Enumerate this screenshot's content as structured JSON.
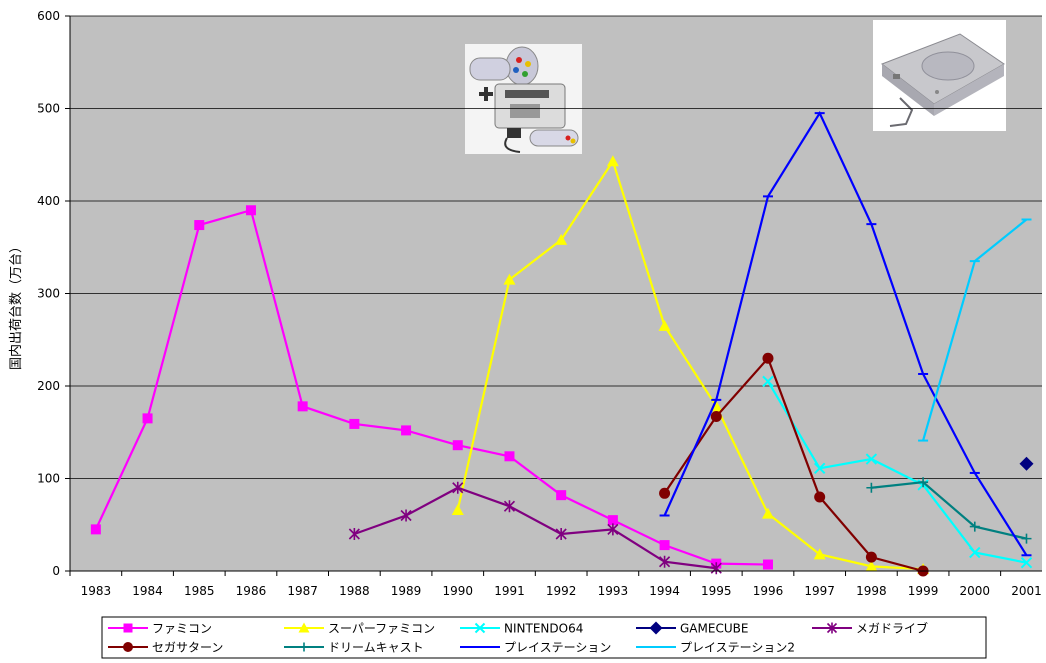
{
  "chart_data": {
    "type": "line",
    "title": "",
    "xlabel": "",
    "ylabel": "国内出荷台数（万台）",
    "ylim": [
      0,
      600
    ],
    "yticks": [
      0,
      100,
      200,
      300,
      400,
      500,
      600
    ],
    "categories": [
      "1983",
      "1984",
      "1985",
      "1986",
      "1987",
      "1988",
      "1989",
      "1990",
      "1991",
      "1992",
      "1993",
      "1994",
      "1995",
      "1996",
      "1997",
      "1998",
      "1999",
      "2000",
      "2001"
    ],
    "grid": "horizontal",
    "background_color": "#c0c0c0",
    "legend_position": "bottom",
    "series": [
      {
        "name": "ファミコン",
        "color": "#ff00ff",
        "marker": "square",
        "values": [
          45,
          165,
          374,
          390,
          178,
          159,
          152,
          136,
          124,
          82,
          55,
          28,
          8,
          7,
          null,
          null,
          null,
          null,
          null
        ]
      },
      {
        "name": "スーパーファミコン",
        "color": "#ffff00",
        "marker": "triangle",
        "values": [
          null,
          null,
          null,
          null,
          null,
          null,
          null,
          66,
          315,
          358,
          443,
          265,
          178,
          62,
          18,
          5,
          2,
          null,
          null
        ]
      },
      {
        "name": "NINTENDO64",
        "color": "#00ffff",
        "marker": "x",
        "values": [
          null,
          null,
          null,
          null,
          null,
          null,
          null,
          null,
          null,
          null,
          null,
          null,
          null,
          205,
          111,
          121,
          93,
          20,
          9
        ]
      },
      {
        "name": "GAMECUBE",
        "color": "#000080",
        "marker": "diamond",
        "values": [
          null,
          null,
          null,
          null,
          null,
          null,
          null,
          null,
          null,
          null,
          null,
          null,
          null,
          null,
          null,
          null,
          null,
          null,
          116
        ]
      },
      {
        "name": "メガドライブ",
        "color": "#800080",
        "marker": "asterisk",
        "values": [
          null,
          null,
          null,
          null,
          null,
          40,
          60,
          90,
          70,
          40,
          45,
          10,
          3,
          null,
          null,
          null,
          null,
          null,
          null
        ]
      },
      {
        "name": "セガサターン",
        "color": "#800000",
        "marker": "circle",
        "values": [
          null,
          null,
          null,
          null,
          null,
          null,
          null,
          null,
          null,
          null,
          null,
          84,
          167,
          230,
          80,
          15,
          0,
          null,
          null
        ]
      },
      {
        "name": "ドリームキャスト",
        "color": "#008080",
        "marker": "plus",
        "values": [
          null,
          null,
          null,
          null,
          null,
          null,
          null,
          null,
          null,
          null,
          null,
          null,
          null,
          null,
          null,
          90,
          96,
          48,
          35
        ]
      },
      {
        "name": "プレイステーション",
        "color": "#0000ff",
        "marker": "dash",
        "values": [
          null,
          null,
          null,
          null,
          null,
          null,
          null,
          null,
          null,
          null,
          null,
          60,
          185,
          405,
          495,
          375,
          213,
          106,
          17
        ]
      },
      {
        "name": "プレイステーション2",
        "color": "#00ccff",
        "marker": "dash",
        "values": [
          null,
          null,
          null,
          null,
          null,
          null,
          null,
          null,
          null,
          null,
          null,
          null,
          null,
          null,
          null,
          null,
          141,
          335,
          380
        ]
      }
    ]
  },
  "images": [
    {
      "name": "super-famicom-console-photo",
      "description_icon": "console-icon"
    },
    {
      "name": "playstation-console-photo",
      "description_icon": "console-icon"
    }
  ]
}
